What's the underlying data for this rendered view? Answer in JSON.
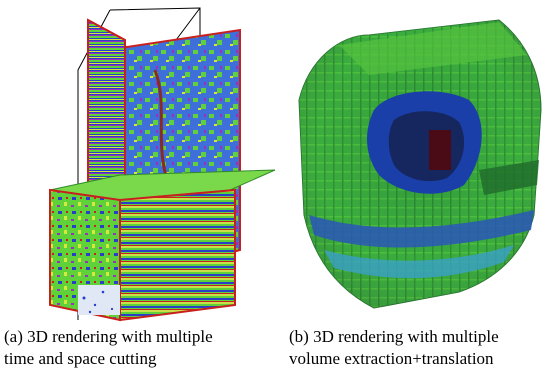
{
  "figure": {
    "subfigures": [
      {
        "id": "a",
        "caption_line1": "(a) 3D rendering with multiple",
        "caption_line2": "time and space cutting"
      },
      {
        "id": "b",
        "caption_line1": "(b) 3D rendering with multiple",
        "caption_line2": "volume extraction+translation"
      }
    ],
    "colors": {
      "green": "#5fd23a",
      "blue": "#2a3fc8",
      "yellow": "#d7e83c",
      "red": "#c8201e",
      "dark_green": "#1f6a2a",
      "navy": "#16265e",
      "maroon": "#4a0b16"
    }
  }
}
